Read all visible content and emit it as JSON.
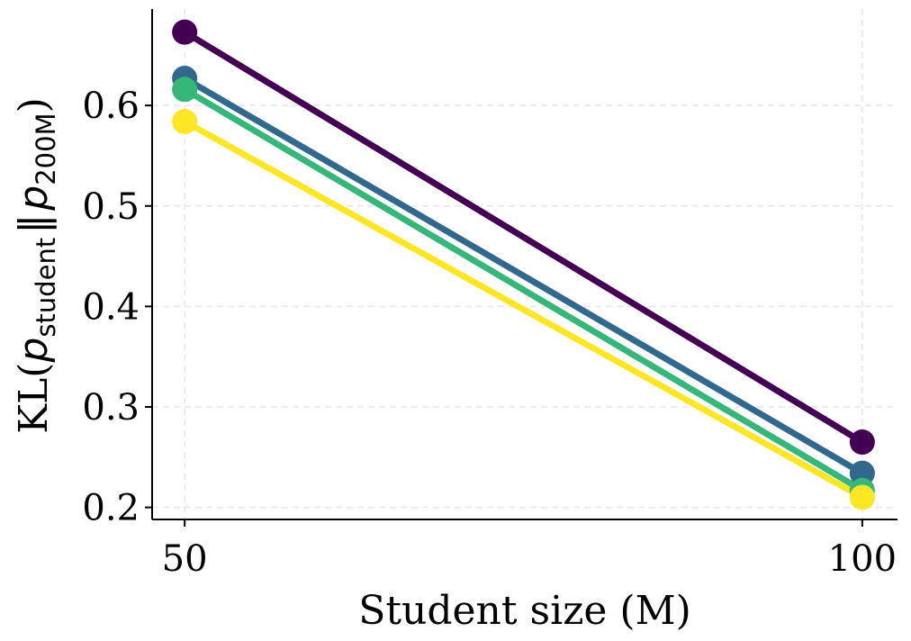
{
  "chart_data": {
    "type": "line",
    "xlabel": "Student size (M)",
    "ylabel": {
      "prefix": "KL(",
      "var1": "p",
      "sub1": "student",
      "norm": "‖",
      "var2": "p",
      "sub2": "200M",
      "suffix": ")"
    },
    "x": [
      50,
      100
    ],
    "x_tick_labels": [
      "50",
      "100"
    ],
    "y_ticks": [
      0.2,
      0.3,
      0.4,
      0.5,
      0.6
    ],
    "y_tick_labels": [
      "0.2",
      "0.3",
      "0.4",
      "0.5",
      "0.6"
    ],
    "xlim": [
      47.6,
      102.6
    ],
    "ylim": [
      0.188,
      0.696
    ],
    "grid": true,
    "series": [
      {
        "color": "#440154",
        "values": [
          0.673,
          0.265
        ]
      },
      {
        "color": "#31688e",
        "values": [
          0.627,
          0.234
        ]
      },
      {
        "color": "#35b779",
        "values": [
          0.616,
          0.217
        ]
      },
      {
        "color": "#fde725",
        "values": [
          0.584,
          0.21
        ]
      }
    ]
  }
}
